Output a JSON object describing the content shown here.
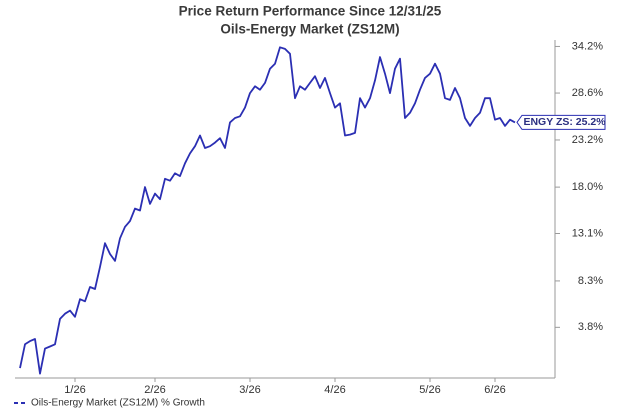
{
  "chart_data": {
    "type": "line",
    "title": "Price Return Performance Since 12/31/25",
    "subtitle": "Oils-Energy Market (ZS12M)",
    "y_scale": "log-growth",
    "ylim": [
      -0.9,
      34.5
    ],
    "yticks": [
      {
        "value": 3.8,
        "label": "3.8%"
      },
      {
        "value": 8.3,
        "label": "8.3%"
      },
      {
        "value": 13.1,
        "label": "13.1%"
      },
      {
        "value": 18.0,
        "label": "18.0%"
      },
      {
        "value": 23.2,
        "label": "23.2%"
      },
      {
        "value": 28.6,
        "label": "28.6%"
      },
      {
        "value": 34.2,
        "label": "34.2%"
      }
    ],
    "xlim": [
      0,
      107
    ],
    "xticks": [
      {
        "value": 11,
        "label": "1/26"
      },
      {
        "value": 27,
        "label": "2/26"
      },
      {
        "value": 46,
        "label": "3/26"
      },
      {
        "value": 63,
        "label": "4/26"
      },
      {
        "value": 82,
        "label": "5/26"
      },
      {
        "value": 95,
        "label": "6/26"
      }
    ],
    "x": [
      0,
      1,
      2,
      3,
      4,
      5,
      6,
      7,
      8,
      9,
      10,
      11,
      12,
      13,
      14,
      15,
      16,
      17,
      18,
      19,
      20,
      21,
      22,
      23,
      24,
      25,
      26,
      27,
      28,
      29,
      30,
      31,
      32,
      33,
      34,
      35,
      36,
      37,
      38,
      39,
      40,
      41,
      42,
      43,
      44,
      45,
      46,
      47,
      48,
      49,
      50,
      51,
      52,
      53,
      54,
      55,
      56,
      57,
      58,
      59,
      60,
      61,
      62,
      63,
      64,
      65,
      66,
      67,
      68,
      69,
      70,
      71,
      72,
      73,
      74,
      75,
      76,
      77,
      78,
      79,
      80,
      81,
      82,
      83,
      84,
      85,
      86,
      87,
      88,
      89,
      90,
      91,
      92,
      93,
      94,
      95,
      96,
      97,
      98,
      99
    ],
    "series": [
      {
        "name": "Oils-Energy Market (ZS12M) % Growth",
        "color": "#2b2fb3",
        "values": [
          0.0,
          2.2,
          2.5,
          2.7,
          -0.5,
          1.8,
          2.0,
          2.2,
          4.6,
          5.1,
          5.4,
          4.8,
          6.5,
          6.3,
          7.7,
          7.5,
          9.7,
          12.1,
          11.0,
          10.3,
          12.6,
          13.8,
          14.4,
          15.7,
          15.5,
          18.0,
          16.2,
          17.3,
          16.7,
          18.9,
          18.7,
          19.5,
          19.2,
          20.6,
          21.7,
          22.5,
          23.7,
          22.3,
          22.5,
          22.9,
          23.4,
          22.3,
          25.2,
          25.7,
          25.9,
          26.9,
          28.6,
          29.4,
          29.0,
          29.8,
          31.5,
          32.1,
          34.1,
          33.9,
          33.3,
          28.0,
          29.4,
          29.0,
          29.8,
          30.6,
          29.2,
          30.4,
          28.6,
          26.9,
          27.4,
          23.7,
          23.8,
          24.0,
          28.0,
          26.9,
          28.0,
          30.1,
          32.9,
          30.9,
          28.6,
          31.5,
          32.7,
          25.7,
          26.3,
          27.4,
          29.0,
          30.4,
          30.9,
          32.1,
          30.9,
          28.0,
          27.8,
          29.2,
          28.0,
          25.7,
          24.8,
          25.7,
          26.3,
          28.0,
          28.0,
          25.5,
          25.7,
          24.8,
          25.5,
          25.2
        ]
      }
    ],
    "end_label": "ENGY ZS: 25.2%"
  }
}
